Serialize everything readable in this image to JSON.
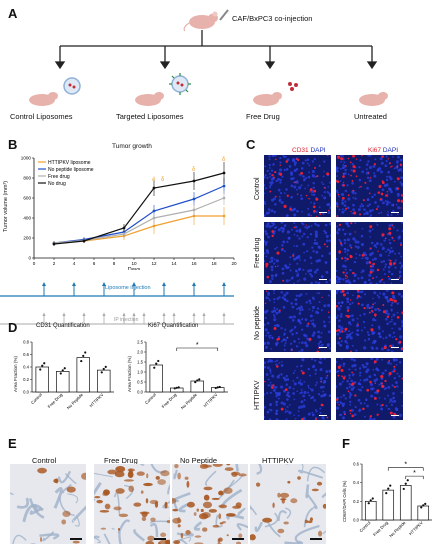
{
  "panels": {
    "A": "A",
    "B": "B",
    "C": "C",
    "D": "D",
    "E": "E",
    "F": "F"
  },
  "panelA": {
    "coinjection_label": "CAF/BxPC3 co-injection",
    "groups": [
      "Control Liposomes",
      "Targeted Liposomes",
      "Free Drug",
      "Untreated"
    ]
  },
  "panelB": {
    "title": "Tumor growth",
    "ylabel": "Tumor volume (mm³)",
    "xlabel": "Days",
    "liposome_injection": "Liposome injection",
    "ip_injection": "IP injection",
    "marker_hash": "#",
    "marker_delta": "δ",
    "chart_data": {
      "type": "line",
      "x": [
        2,
        5,
        9,
        12,
        16,
        19
      ],
      "xlim": [
        0,
        20
      ],
      "ylim": [
        0,
        1000
      ],
      "xticks": [
        "0",
        "2",
        "4",
        "6",
        "8",
        "10",
        "12",
        "14",
        "16",
        "18",
        "20"
      ],
      "yticks": [
        "0",
        "200",
        "400",
        "600",
        "800",
        "1000"
      ],
      "series": [
        {
          "name": "HTTIPKV liposome",
          "color": "#f0a030",
          "values": [
            150,
            170,
            220,
            320,
            420,
            420
          ],
          "err": [
            20,
            20,
            40,
            80,
            90,
            90
          ]
        },
        {
          "name": "No peptide liposome",
          "color": "#1f4fc8",
          "values": [
            150,
            185,
            260,
            470,
            590,
            720
          ],
          "err": [
            20,
            25,
            40,
            60,
            70,
            80
          ]
        },
        {
          "name": "Free drug",
          "color": "#b0b0b0",
          "values": [
            150,
            175,
            240,
            400,
            480,
            600
          ],
          "err": [
            20,
            20,
            40,
            60,
            70,
            70
          ]
        },
        {
          "name": "No drug",
          "color": "#111111",
          "values": [
            140,
            170,
            300,
            700,
            770,
            850
          ],
          "err": [
            20,
            20,
            40,
            80,
            90,
            110
          ]
        }
      ]
    }
  },
  "panelC": {
    "col1": {
      "marker": "CD31",
      "stain": "DAPI"
    },
    "col2": {
      "marker": "Ki67",
      "stain": "DAPI"
    },
    "rows": [
      "Control",
      "Free drug",
      "No peptide",
      "HTTIPKV"
    ]
  },
  "panelD": {
    "cd31": {
      "title": "CD31 Quantification",
      "ylabel": "Area Fraction (%)",
      "chart_data": {
        "type": "bar",
        "categories": [
          "Control",
          "Free Drug",
          "No Peptide",
          "HTTIPKV"
        ],
        "values": [
          0.4,
          0.33,
          0.55,
          0.35
        ],
        "ylim": [
          0,
          0.8
        ],
        "yticks": [
          "0.0",
          "0.2",
          "0.4",
          "0.6",
          "0.8"
        ]
      }
    },
    "ki67": {
      "title": "Ki67 Quantification",
      "ylabel": "Area Fraction (%)",
      "significance": "*",
      "chart_data": {
        "type": "bar",
        "categories": [
          "Control",
          "Free Drug",
          "No Peptide",
          "HTTIPKV"
        ],
        "values": [
          1.35,
          0.2,
          0.55,
          0.22
        ],
        "ylim": [
          0,
          2.5
        ],
        "yticks": [
          "0.0",
          "0.5",
          "1.0",
          "1.5",
          "2.0",
          "2.5"
        ]
      }
    }
  },
  "panelE": {
    "labels": [
      "Control",
      "Free Drug",
      "No Peptide",
      "HTTIPKV"
    ]
  },
  "panelF": {
    "ylabel": "CD68*/DAPI Cells (%)",
    "significance": "*",
    "chart_data": {
      "type": "bar",
      "categories": [
        "Control",
        "Free Drug",
        "No Peptide",
        "HTTIPKV"
      ],
      "values": [
        0.2,
        0.32,
        0.37,
        0.15
      ],
      "ylim": [
        0,
        0.6
      ],
      "yticks": [
        "0.0",
        "0.2",
        "0.4",
        "0.6"
      ]
    }
  },
  "colors": {
    "fluor_bg": "#101a6a",
    "red_signal": "#ff2030",
    "accent_blue": "#1f78b4",
    "dapi": "#1a2cc0"
  }
}
